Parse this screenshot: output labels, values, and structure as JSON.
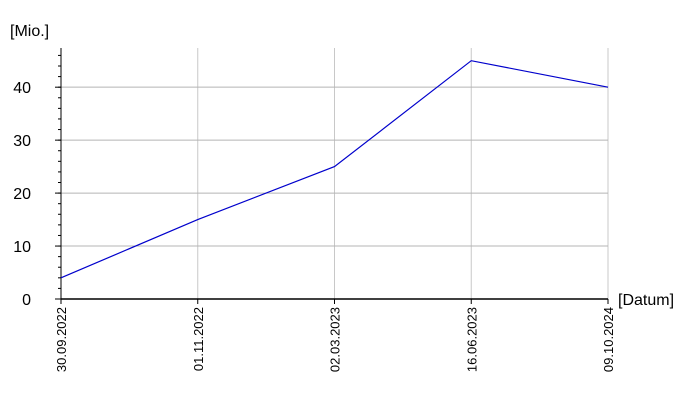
{
  "chart_data": {
    "type": "line",
    "y_label": "[Mio.]",
    "x_label": "[Datum]",
    "categories": [
      "30.09.2022",
      "01.11.2022",
      "02.03.2023",
      "16.06.2023",
      "09.10.2024"
    ],
    "values": [
      4,
      15,
      25,
      45,
      40
    ],
    "color": "#0000cc",
    "ylim": [
      0,
      47.4
    ],
    "yticks": [
      0,
      10,
      20,
      30,
      40
    ],
    "grid": true
  }
}
